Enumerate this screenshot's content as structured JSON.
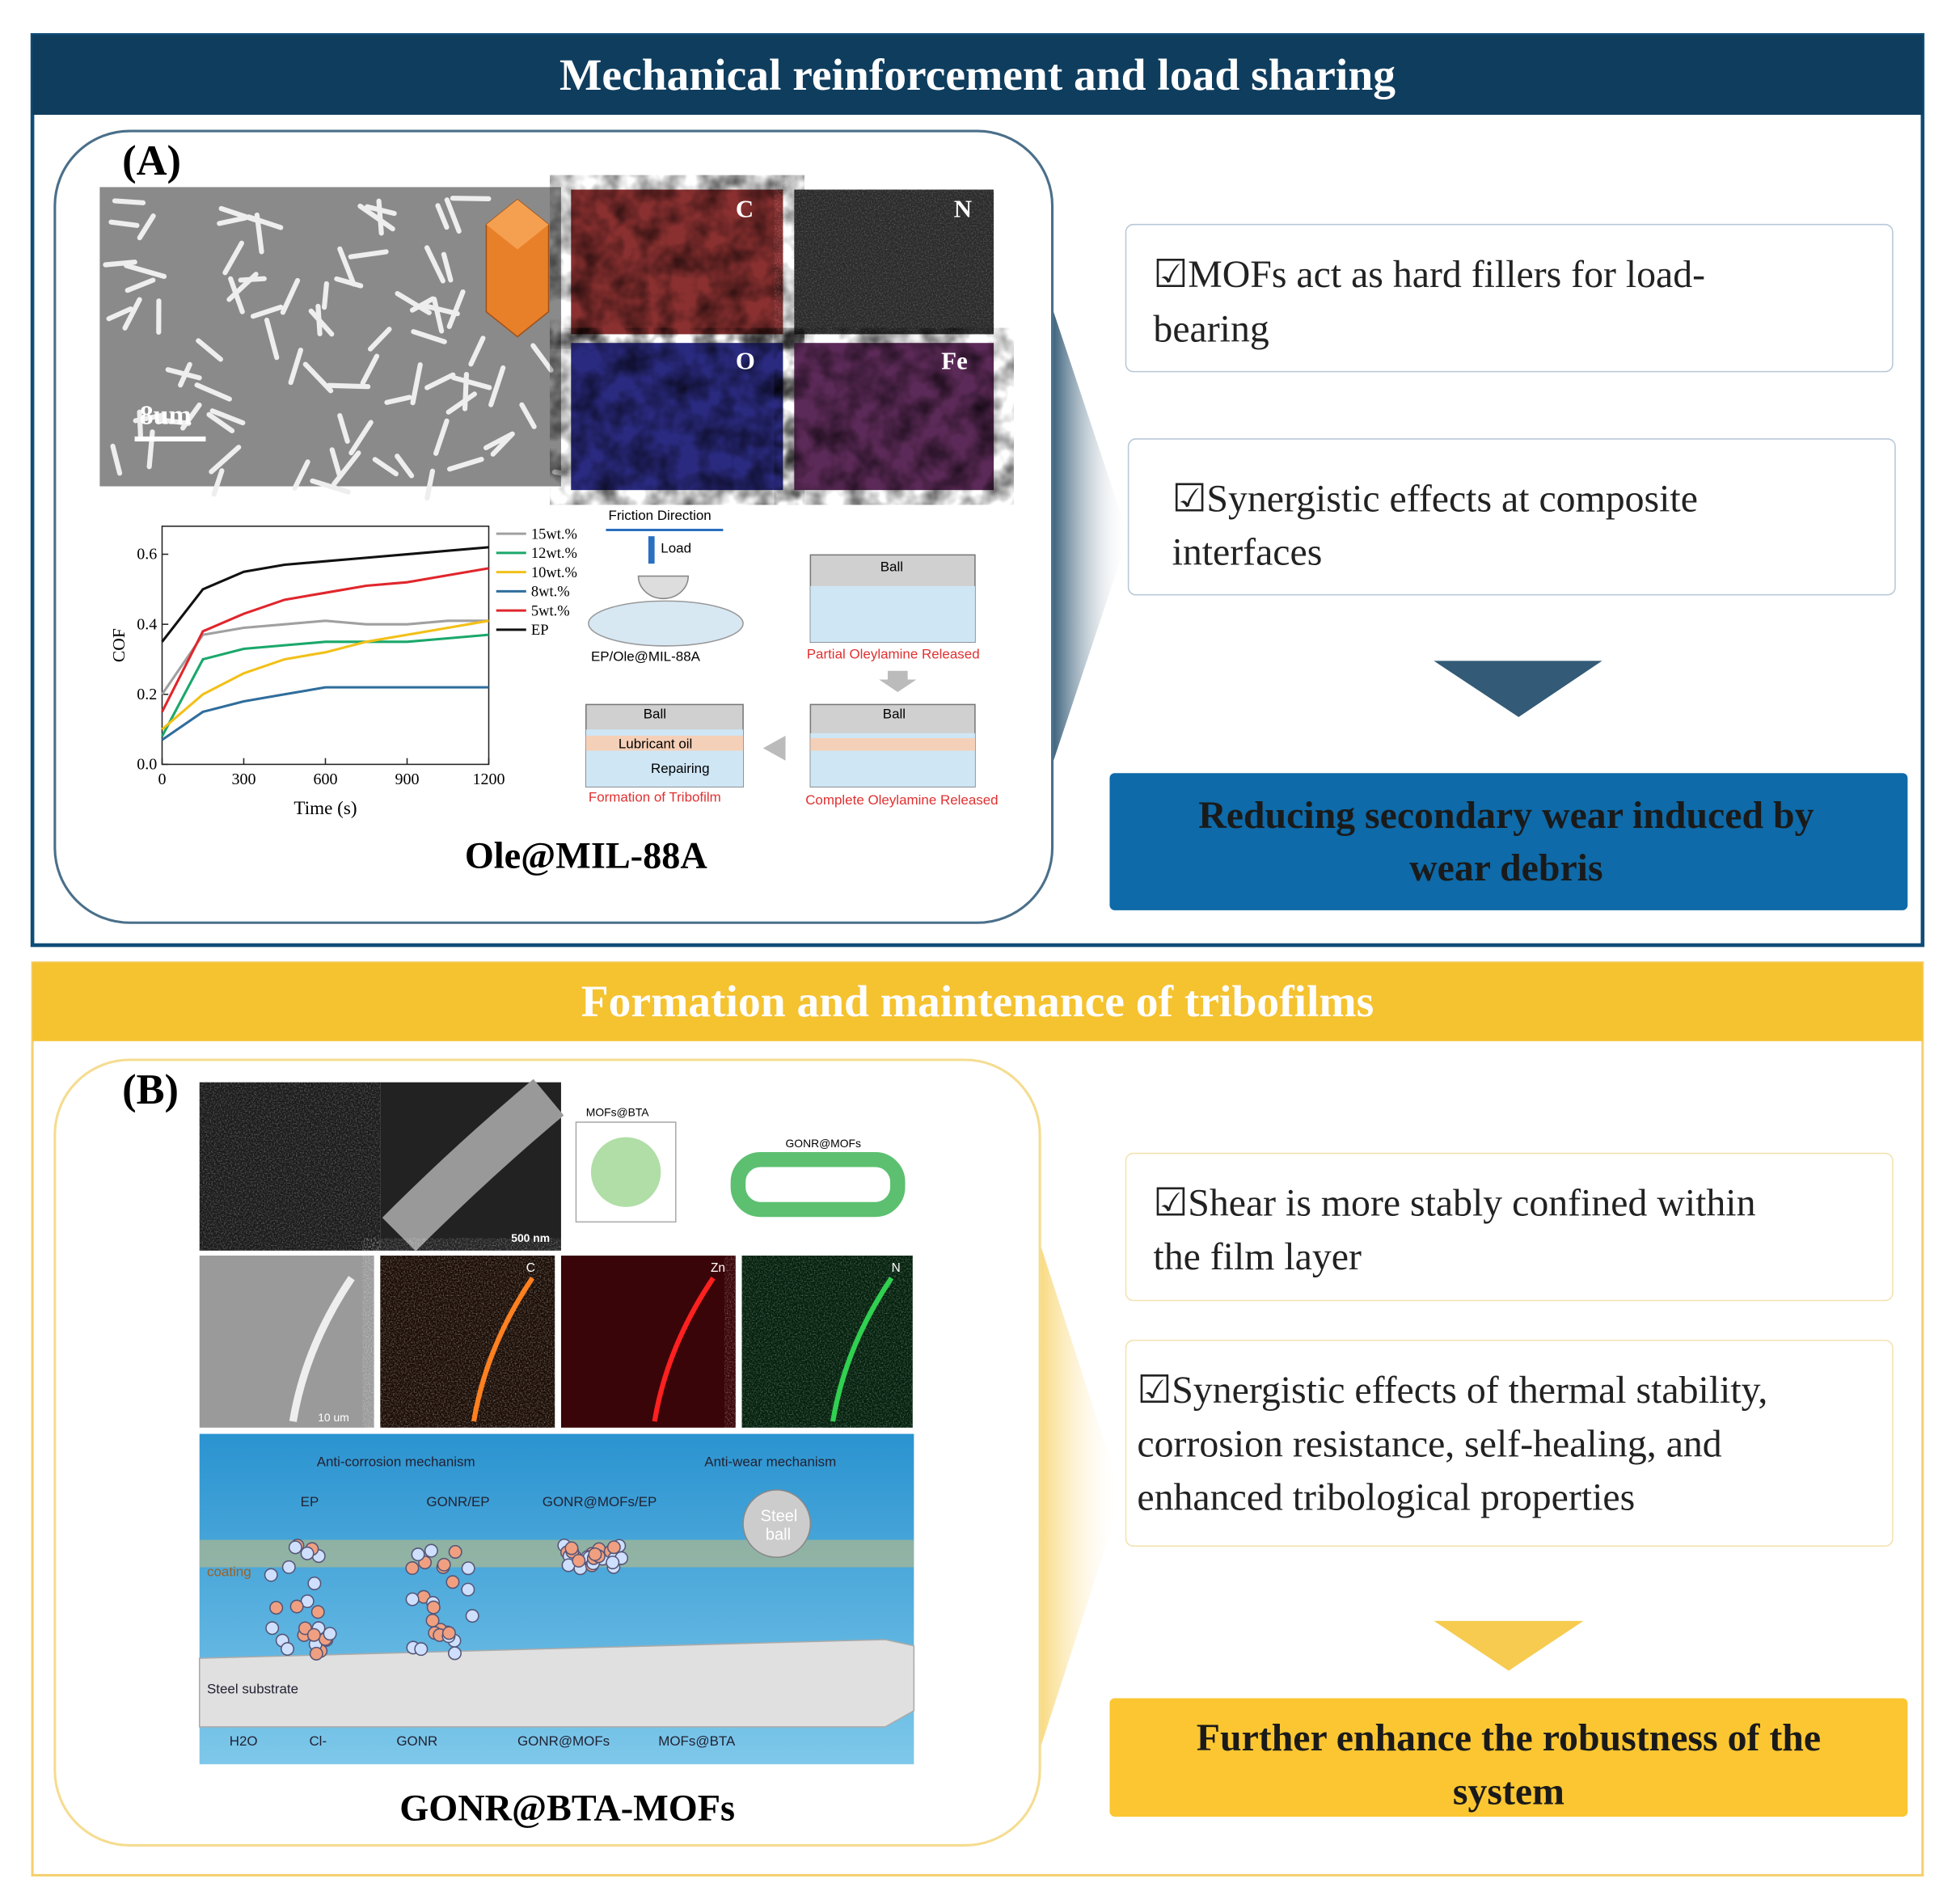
{
  "header_a": {
    "title": "Mechanical reinforcement and load sharing"
  },
  "panel_a": {
    "label": "(A)",
    "scale_bar": "8um",
    "eds_labels": [
      "C",
      "N",
      "O",
      "Fe"
    ],
    "cof_chart": {
      "type": "line",
      "y_label": "COF",
      "x_label": "Time (s)",
      "x": [
        0,
        150,
        300,
        450,
        600,
        750,
        900,
        1050,
        1200
      ],
      "xlim": [
        0,
        1200
      ],
      "xticks": [
        0,
        300,
        600,
        900,
        1200
      ],
      "ylim": [
        0,
        0.68
      ],
      "yticks": [
        {
          "value": 0,
          "label": "0.0"
        },
        0.2,
        0.4,
        0.6
      ],
      "series": [
        {
          "name": "15wt.%",
          "color": "#a0a0a0",
          "values": [
            0.2,
            0.37,
            0.39,
            0.4,
            0.41,
            0.4,
            0.4,
            0.41,
            0.41
          ]
        },
        {
          "name": "12wt.%",
          "color": "#1aa86b",
          "values": [
            0.08,
            0.3,
            0.33,
            0.34,
            0.35,
            0.35,
            0.35,
            0.36,
            0.37
          ]
        },
        {
          "name": "10wt.%",
          "color": "#f2c018",
          "values": [
            0.1,
            0.2,
            0.26,
            0.3,
            0.32,
            0.35,
            0.37,
            0.39,
            0.41
          ]
        },
        {
          "name": "8wt.%",
          "color": "#2f6d9c",
          "values": [
            0.07,
            0.15,
            0.18,
            0.2,
            0.22,
            0.22,
            0.22,
            0.22,
            0.22
          ]
        },
        {
          "name": "5wt.%",
          "color": "#e0262c",
          "values": [
            0.15,
            0.38,
            0.43,
            0.47,
            0.49,
            0.51,
            0.52,
            0.54,
            0.56
          ]
        },
        {
          "name": "EP",
          "color": "#111111",
          "values": [
            0.35,
            0.5,
            0.55,
            0.57,
            0.58,
            0.59,
            0.6,
            0.61,
            0.62
          ]
        }
      ]
    },
    "schematic": {
      "friction": "Friction Direction",
      "load": "Load",
      "sample": "EP/Ole@MIL-88A",
      "ball_1": "Ball",
      "partial": "Partial Oleylamine Released",
      "ball_2": "Ball",
      "complete": "Complete Oleylamine Released",
      "ball_3": "Ball",
      "oil": "Lubricant oil",
      "repairing": "Repairing",
      "tribofilm": "Formation of Tribofilm"
    },
    "caption": "Ole@MIL-88A"
  },
  "points_a": [
    [
      "☑MOFs act as hard fillers for load-",
      "bearing"
    ],
    [
      "☑Synergistic effects at composite",
      "interfaces"
    ]
  ],
  "result_a": [
    "Reducing secondary wear induced by",
    "wear debris"
  ],
  "header_b": {
    "title": "Formation and maintenance of tribofilms"
  },
  "panel_b": {
    "label": "(B)",
    "scale_500": "500 nm",
    "scale_10": "10 um",
    "eds_labels": [
      "C",
      "Zn",
      "N"
    ],
    "mofs_bta": "MOFs@BTA",
    "gonr_mofs": "GONR@MOFs",
    "scene": {
      "anti_corrosion": "Anti-corrosion mechanism",
      "anti_wear": "Anti-wear mechanism",
      "ep": "EP",
      "gonr_ep": "GONR/EP",
      "gonr_mofs_ep": "GONR@MOFs/EP",
      "steel_ball": [
        "Steel",
        "ball"
      ],
      "coating": "coating",
      "substrate": "Steel substrate",
      "legend": [
        "H2O",
        "Cl-",
        "GONR",
        "GONR@MOFs",
        "MOFs@BTA"
      ]
    },
    "caption": "GONR@BTA-MOFs"
  },
  "points_b": [
    [
      "☑Shear is more stably confined within",
      "the film layer"
    ],
    [
      "☑Synergistic effects of thermal stability,",
      "corrosion resistance, self-healing, and",
      "enhanced tribological properties"
    ]
  ],
  "result_b": [
    "Further enhance the robustness of the",
    "system"
  ]
}
